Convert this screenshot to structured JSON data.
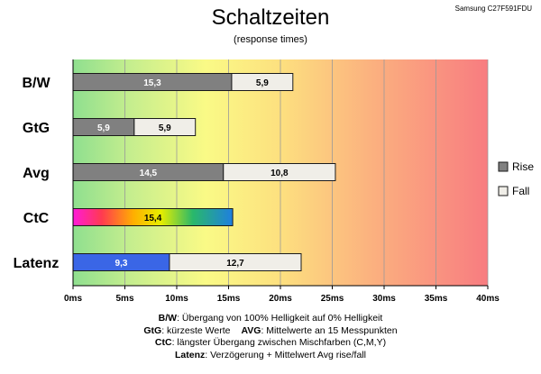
{
  "header": {
    "title": "Schaltzeiten",
    "subtitle": "(response times)",
    "device": "Samsung C27F591FDU"
  },
  "chart_data": {
    "type": "bar",
    "orientation": "horizontal",
    "stacked": true,
    "categories": [
      "B/W",
      "GtG",
      "Avg",
      "CtC",
      "Latenz"
    ],
    "series": [
      {
        "name": "Rise",
        "values": [
          15.3,
          5.9,
          14.5,
          15.4,
          9.3
        ]
      },
      {
        "name": "Fall",
        "values": [
          5.9,
          5.9,
          10.8,
          null,
          12.7
        ]
      }
    ],
    "value_labels": {
      "Rise": [
        "15,3",
        "5,9",
        "14,5",
        "15,4",
        "9,3"
      ],
      "Fall": [
        "5,9",
        "5,9",
        "10,8",
        "",
        "12,7"
      ]
    },
    "special_fills": {
      "CtC": "rainbow",
      "Latenz": "blue"
    },
    "xlim": [
      0,
      40
    ],
    "xticks": [
      0,
      5,
      10,
      15,
      20,
      25,
      30,
      35,
      40
    ],
    "xtick_labels": [
      "0ms",
      "5ms",
      "10ms",
      "15ms",
      "20ms",
      "25ms",
      "30ms",
      "35ms",
      "40ms"
    ],
    "legend_position": "right",
    "grid": "vertical",
    "background": "green-to-red gradient",
    "colors": {
      "rise": "#808080",
      "fall": "#f0eee8",
      "latenz": "#3a66e6"
    }
  },
  "notes": {
    "bw_key": "B/W",
    "bw_text": ":  Übergang von 100% Helligkeit auf 0% Helligkeit",
    "gtg_key": "GtG",
    "gtg_text": ": kürzeste  Werte",
    "avg_key": "AVG",
    "avg_text": ": Mittelwerte  an 15 Messpunkten",
    "ctc_key": "CtC",
    "ctc_text": ": längster Übergang  zwischen Mischfarben (C,M,Y)",
    "lat_key": "Latenz",
    "lat_text": ": Verzögerung  + Mittelwert Avg rise/fall"
  }
}
